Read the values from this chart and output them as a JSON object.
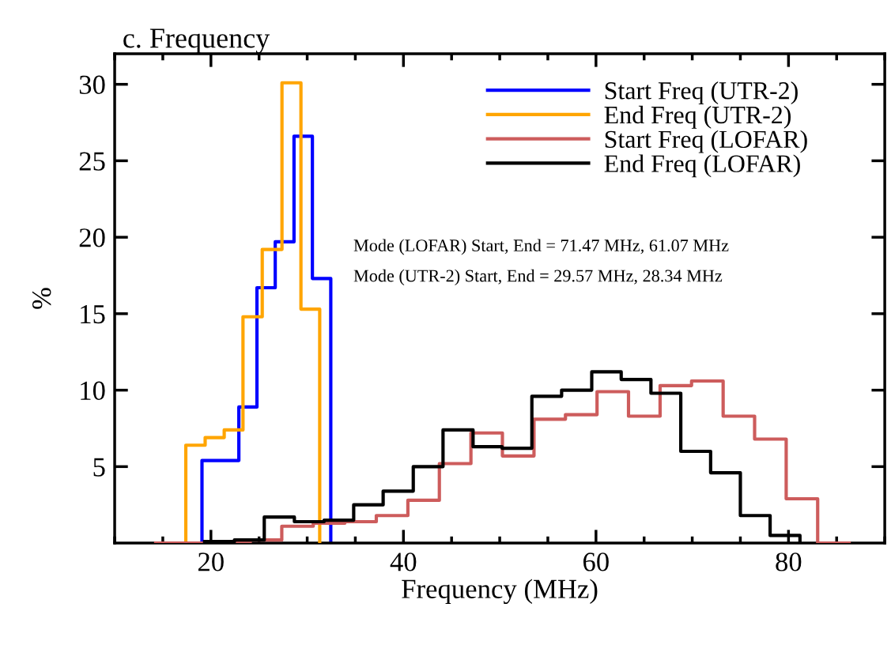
{
  "chart_data": {
    "type": "step",
    "title": "c. Frequency",
    "xlabel": "Frequency (MHz)",
    "ylabel": "%",
    "xlim": [
      10,
      90
    ],
    "xticks": [
      20,
      40,
      60,
      80
    ],
    "ylim": [
      0,
      32
    ],
    "yticks": [
      5,
      10,
      15,
      20,
      25,
      30
    ],
    "legend": "top right",
    "grid": false,
    "series": [
      {
        "name": "Start Freq (UTR-2)",
        "color": "#0000ff",
        "x": [
          19.07,
          19.07,
          20.98,
          22.9,
          24.78,
          26.68,
          28.63,
          30.54,
          32.45
        ],
        "values": [
          0,
          5.4,
          5.4,
          8.9,
          16.7,
          19.7,
          26.6,
          17.3,
          0
        ]
      },
      {
        "name": "End Freq (UTR-2)",
        "color": "#ffa500",
        "x": [
          17.39,
          17.39,
          19.4,
          21.38,
          23.33,
          25.33,
          27.38,
          29.35,
          31.3
        ],
        "values": [
          0,
          6.4,
          6.9,
          7.4,
          14.8,
          19.2,
          30.1,
          15.3,
          0
        ]
      },
      {
        "name": "Start Freq (LOFAR)",
        "color": "#cd5c5c",
        "x": [
          14.26,
          17.53,
          20.81,
          24.08,
          27.36,
          30.63,
          33.91,
          37.18,
          40.46,
          43.73,
          47.01,
          50.28,
          53.56,
          56.83,
          60.11,
          63.38,
          66.66,
          69.93,
          73.21,
          76.48,
          79.76,
          83.03,
          86.3
        ],
        "values": [
          0,
          0,
          0,
          0.2,
          1.1,
          1.3,
          1.4,
          1.8,
          2.8,
          5.2,
          7.2,
          5.7,
          8.1,
          8.4,
          9.9,
          8.3,
          10.3,
          10.6,
          8.3,
          6.8,
          2.9,
          0,
          0
        ]
      },
      {
        "name": "End Freq (LOFAR)",
        "color": "#000000",
        "x": [
          19.34,
          22.44,
          25.54,
          28.67,
          31.76,
          34.83,
          37.89,
          41.02,
          44.11,
          47.23,
          50.24,
          53.34,
          56.43,
          59.56,
          62.62,
          65.71,
          68.81,
          71.91,
          75.0,
          78.09,
          81.19
        ],
        "values": [
          0.1,
          0.2,
          1.7,
          1.4,
          1.5,
          2.5,
          3.4,
          5.0,
          7.4,
          6.3,
          6.2,
          9.6,
          10.0,
          11.2,
          10.7,
          9.8,
          6.0,
          4.6,
          1.8,
          0.5,
          0
        ]
      }
    ],
    "annotations": [
      "Mode (LOFAR) Start, End = 71.47 MHz, 61.07 MHz",
      "Mode (UTR-2) Start, End = 29.57 MHz, 28.34 MHz"
    ]
  }
}
